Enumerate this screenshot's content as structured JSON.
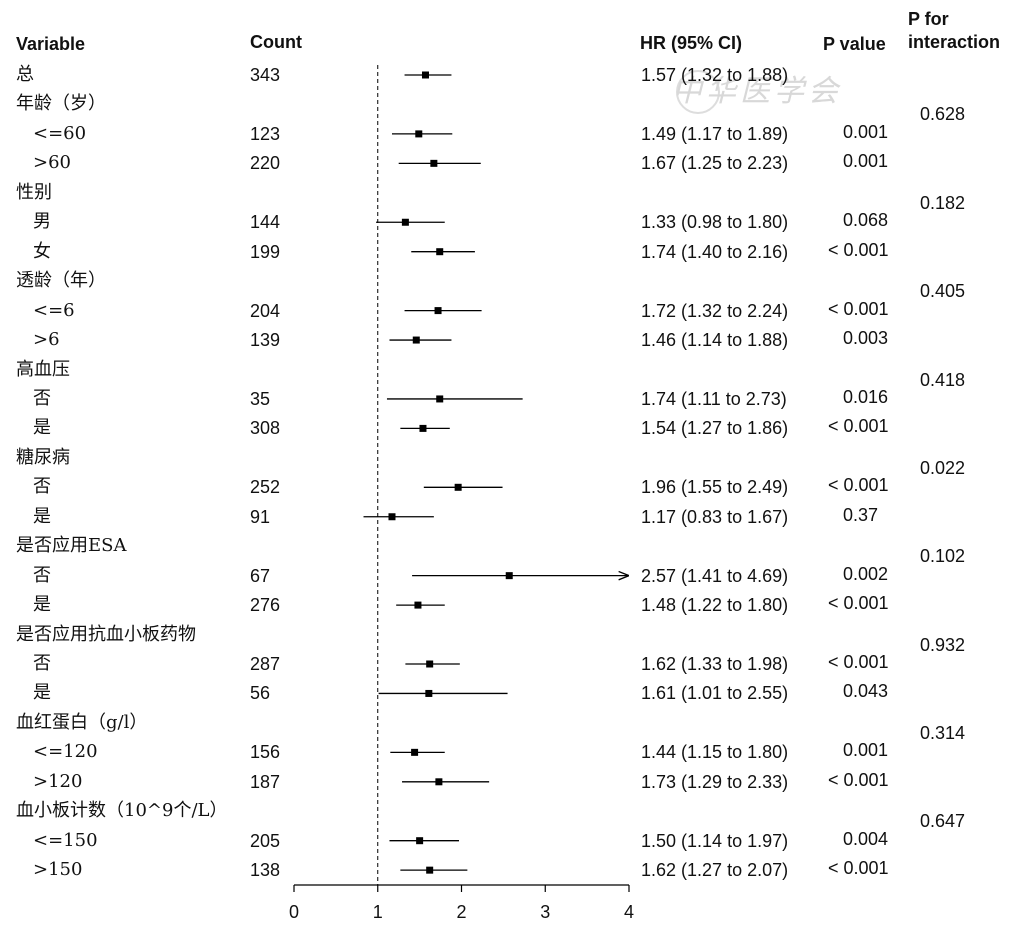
{
  "headers": {
    "variable": "Variable",
    "count": "Count",
    "hr": "HR (95% CI)",
    "pvalue": "P value",
    "pinteraction_1": "P for",
    "pinteraction_2": "interaction"
  },
  "watermark": "中华医学会",
  "chart_data": {
    "type": "forest",
    "reference_line": 1,
    "xlim": [
      0,
      4
    ],
    "x_ticks": [
      "0",
      "1",
      "2",
      "3",
      "4"
    ],
    "rows": [
      {
        "label": "总",
        "indent": 0,
        "count": "343",
        "hr": 1.57,
        "lo": 1.32,
        "hi": 1.88,
        "ci_text": "1.57 (1.32 to 1.88)",
        "p": "",
        "p_int": ""
      },
      {
        "label": "年龄（岁）",
        "indent": 0,
        "count": "",
        "hr": null,
        "lo": null,
        "hi": null,
        "ci_text": "",
        "p": "",
        "p_int": "0.628"
      },
      {
        "label": "<=60",
        "indent": 1,
        "count": "123",
        "hr": 1.49,
        "lo": 1.17,
        "hi": 1.89,
        "ci_text": "1.49 (1.17 to 1.89)",
        "p": "0.001",
        "p_int": ""
      },
      {
        "label": ">60",
        "indent": 1,
        "count": "220",
        "hr": 1.67,
        "lo": 1.25,
        "hi": 2.23,
        "ci_text": "1.67 (1.25 to 2.23)",
        "p": "0.001",
        "p_int": ""
      },
      {
        "label": "性别",
        "indent": 0,
        "count": "",
        "hr": null,
        "lo": null,
        "hi": null,
        "ci_text": "",
        "p": "",
        "p_int": "0.182"
      },
      {
        "label": "男",
        "indent": 1,
        "count": "144",
        "hr": 1.33,
        "lo": 0.98,
        "hi": 1.8,
        "ci_text": "1.33 (0.98 to 1.80)",
        "p": "0.068",
        "p_int": ""
      },
      {
        "label": "女",
        "indent": 1,
        "count": "199",
        "hr": 1.74,
        "lo": 1.4,
        "hi": 2.16,
        "ci_text": "1.74 (1.40 to 2.16)",
        "p": "< 0.001",
        "p_int": ""
      },
      {
        "label": "透龄（年）",
        "indent": 0,
        "count": "",
        "hr": null,
        "lo": null,
        "hi": null,
        "ci_text": "",
        "p": "",
        "p_int": "0.405"
      },
      {
        "label": "<=6",
        "indent": 1,
        "count": "204",
        "hr": 1.72,
        "lo": 1.32,
        "hi": 2.24,
        "ci_text": "1.72 (1.32 to 2.24)",
        "p": "< 0.001",
        "p_int": ""
      },
      {
        "label": ">6",
        "indent": 1,
        "count": "139",
        "hr": 1.46,
        "lo": 1.14,
        "hi": 1.88,
        "ci_text": "1.46 (1.14 to 1.88)",
        "p": "0.003",
        "p_int": ""
      },
      {
        "label": "高血压",
        "indent": 0,
        "count": "",
        "hr": null,
        "lo": null,
        "hi": null,
        "ci_text": "",
        "p": "",
        "p_int": "0.418"
      },
      {
        "label": "否",
        "indent": 1,
        "count": "35",
        "hr": 1.74,
        "lo": 1.11,
        "hi": 2.73,
        "ci_text": "1.74 (1.11 to 2.73)",
        "p": "0.016",
        "p_int": ""
      },
      {
        "label": "是",
        "indent": 1,
        "count": "308",
        "hr": 1.54,
        "lo": 1.27,
        "hi": 1.86,
        "ci_text": "1.54 (1.27 to 1.86)",
        "p": "< 0.001",
        "p_int": ""
      },
      {
        "label": "糖尿病",
        "indent": 0,
        "count": "",
        "hr": null,
        "lo": null,
        "hi": null,
        "ci_text": "",
        "p": "",
        "p_int": "0.022"
      },
      {
        "label": "否",
        "indent": 1,
        "count": "252",
        "hr": 1.96,
        "lo": 1.55,
        "hi": 2.49,
        "ci_text": "1.96 (1.55 to 2.49)",
        "p": "< 0.001",
        "p_int": ""
      },
      {
        "label": "是",
        "indent": 1,
        "count": "91",
        "hr": 1.17,
        "lo": 0.83,
        "hi": 1.67,
        "ci_text": "1.17 (0.83 to 1.67)",
        "p": "0.37",
        "p_int": ""
      },
      {
        "label": "是否应用ESA",
        "indent": 0,
        "count": "",
        "hr": null,
        "lo": null,
        "hi": null,
        "ci_text": "",
        "p": "",
        "p_int": "0.102"
      },
      {
        "label": "否",
        "indent": 1,
        "count": "67",
        "hr": 2.57,
        "lo": 1.41,
        "hi": 4.69,
        "ci_text": "2.57 (1.41 to 4.69)",
        "p": "0.002",
        "p_int": ""
      },
      {
        "label": "是",
        "indent": 1,
        "count": "276",
        "hr": 1.48,
        "lo": 1.22,
        "hi": 1.8,
        "ci_text": "1.48 (1.22 to 1.80)",
        "p": "< 0.001",
        "p_int": ""
      },
      {
        "label": "是否应用抗血小板药物",
        "indent": 0,
        "count": "",
        "hr": null,
        "lo": null,
        "hi": null,
        "ci_text": "",
        "p": "",
        "p_int": "0.932"
      },
      {
        "label": "否",
        "indent": 1,
        "count": "287",
        "hr": 1.62,
        "lo": 1.33,
        "hi": 1.98,
        "ci_text": "1.62 (1.33 to 1.98)",
        "p": "< 0.001",
        "p_int": ""
      },
      {
        "label": "是",
        "indent": 1,
        "count": "56",
        "hr": 1.61,
        "lo": 1.01,
        "hi": 2.55,
        "ci_text": "1.61 (1.01 to 2.55)",
        "p": "0.043",
        "p_int": ""
      },
      {
        "label": "血红蛋白（g/l）",
        "indent": 0,
        "count": "",
        "hr": null,
        "lo": null,
        "hi": null,
        "ci_text": "",
        "p": "",
        "p_int": "0.314"
      },
      {
        "label": "<=120",
        "indent": 1,
        "count": "156",
        "hr": 1.44,
        "lo": 1.15,
        "hi": 1.8,
        "ci_text": "1.44 (1.15 to 1.80)",
        "p": "0.001",
        "p_int": ""
      },
      {
        "label": ">120",
        "indent": 1,
        "count": "187",
        "hr": 1.73,
        "lo": 1.29,
        "hi": 2.33,
        "ci_text": "1.73 (1.29 to 2.33)",
        "p": "< 0.001",
        "p_int": ""
      },
      {
        "label": "血小板计数（10^9个/L）",
        "indent": 0,
        "count": "",
        "hr": null,
        "lo": null,
        "hi": null,
        "ci_text": "",
        "p": "",
        "p_int": "0.647"
      },
      {
        "label": "<=150",
        "indent": 1,
        "count": "205",
        "hr": 1.5,
        "lo": 1.14,
        "hi": 1.97,
        "ci_text": "1.50 (1.14 to 1.97)",
        "p": "0.004",
        "p_int": ""
      },
      {
        "label": ">150",
        "indent": 1,
        "count": "138",
        "hr": 1.62,
        "lo": 1.27,
        "hi": 2.07,
        "ci_text": "1.62 (1.27 to 2.07)",
        "p": "< 0.001",
        "p_int": ""
      }
    ]
  }
}
